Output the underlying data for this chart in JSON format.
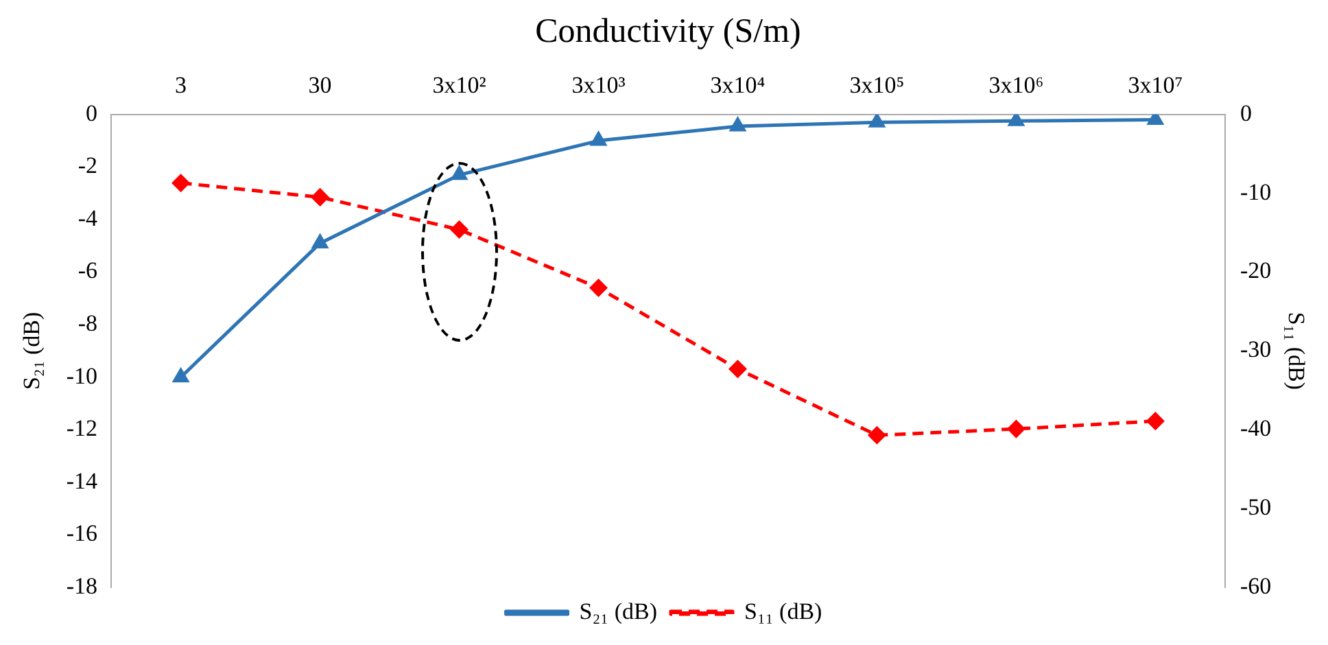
{
  "chart_data": {
    "type": "line",
    "xlabel": "Conductivity (S/m)",
    "ylabel": "S₂₁ (dB)",
    "y2label": "S₁₁ (dB)",
    "categories": [
      "3",
      "30",
      "3x10²",
      "3x10³",
      "3x10⁴",
      "3x10⁵",
      "3x10⁶",
      "3x10⁷"
    ],
    "series": [
      {
        "name": "S₂₁ (dB)",
        "color": "#2e75b6",
        "marker": "triangle",
        "line_style": "solid",
        "values": [
          -10,
          -4.9,
          -2.3,
          -1.0,
          -0.45,
          -0.3,
          -0.25,
          -0.2
        ]
      },
      {
        "name": "S₁₁ (dB)",
        "color": "#ff0000",
        "marker": "diamond",
        "line_style": "dashed",
        "axis": "y2",
        "values": [
          -8.7,
          -10.5,
          -14.6,
          -22,
          -32.3,
          -40.7,
          -39.9,
          -38.9
        ]
      }
    ],
    "ylim": [
      -18,
      0
    ],
    "yticks": [
      0,
      -2,
      -4,
      -6,
      -8,
      -10,
      -12,
      -14,
      -16,
      -18
    ],
    "y2lim": [
      -60,
      0
    ],
    "y2ticks": [
      0,
      -10,
      -20,
      -30,
      -40,
      -50,
      -60
    ],
    "grid": false,
    "legend": "bottom"
  }
}
